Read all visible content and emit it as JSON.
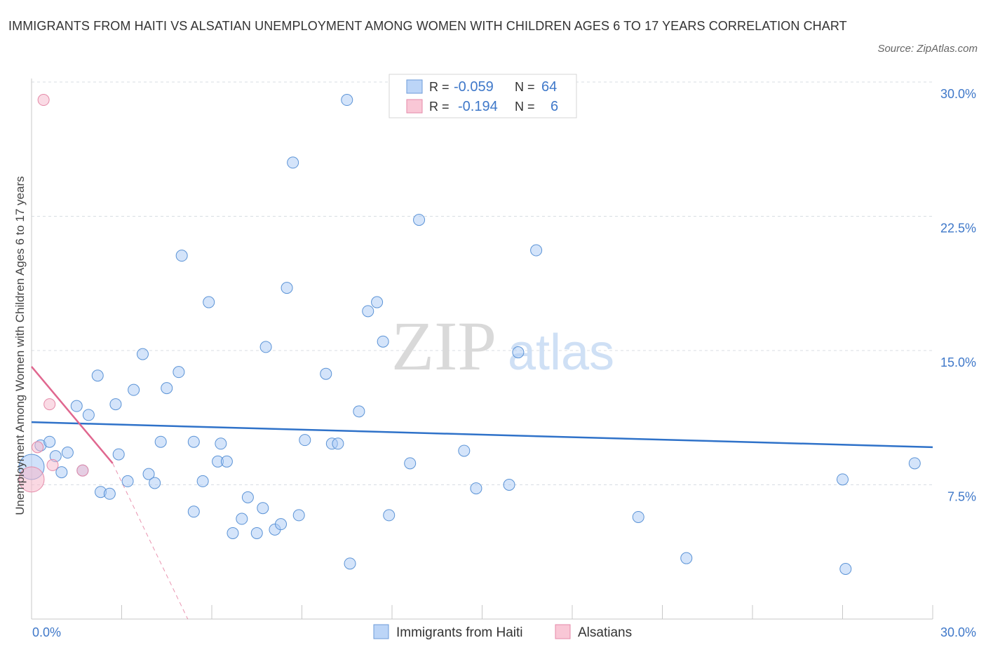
{
  "header": {
    "title": "IMMIGRANTS FROM HAITI VS ALSATIAN UNEMPLOYMENT AMONG WOMEN WITH CHILDREN AGES 6 TO 17 YEARS CORRELATION CHART",
    "source": "Source: ZipAtlas.com"
  },
  "watermark": {
    "zip": "ZIP",
    "atlas": "atlas"
  },
  "colors": {
    "blue_fill": "#a9c9f5",
    "blue_stroke": "#5b93d6",
    "blue_line": "#2f72c9",
    "pink_fill": "#f5b8cb",
    "pink_stroke": "#e58aa8",
    "pink_line": "#e0678f",
    "axis_text": "#3f78c9",
    "grid": "#d8dde3"
  },
  "legend_top": {
    "rows": [
      {
        "r_label": "R =",
        "r_value": "-0.059",
        "n_label": "N =",
        "n_value": "64"
      },
      {
        "r_label": "R =",
        "r_value": "-0.194",
        "n_label": "N =",
        "n_value": "6"
      }
    ]
  },
  "chart_data": {
    "type": "scatter",
    "title": "IMMIGRANTS FROM HAITI VS ALSATIAN UNEMPLOYMENT AMONG WOMEN WITH CHILDREN AGES 6 TO 17 YEARS CORRELATION CHART",
    "xlabel": "",
    "ylabel": "Unemployment Among Women with Children Ages 6 to 17 years",
    "xlim": [
      0,
      30
    ],
    "ylim": [
      0,
      30
    ],
    "x_tick_labels": [
      {
        "value": 0,
        "label": "0.0%"
      },
      {
        "value": 30,
        "label": "30.0%"
      }
    ],
    "y_tick_labels": [
      {
        "value": 7.5,
        "label": "7.5%"
      },
      {
        "value": 15,
        "label": "15.0%"
      },
      {
        "value": 22.5,
        "label": "22.5%"
      },
      {
        "value": 30,
        "label": "30.0%"
      }
    ],
    "legend_position": "bottom-center",
    "series": [
      {
        "name": "Immigrants from Haiti",
        "color": "#a9c9f5",
        "trend": {
          "x": [
            0,
            30
          ],
          "y": [
            11.0,
            9.6
          ],
          "dashed_extension": false
        },
        "points": [
          {
            "x": 0.0,
            "y": 8.5,
            "big": true
          },
          {
            "x": 0.3,
            "y": 9.7
          },
          {
            "x": 0.6,
            "y": 9.9
          },
          {
            "x": 0.8,
            "y": 9.1
          },
          {
            "x": 1.0,
            "y": 8.2
          },
          {
            "x": 1.2,
            "y": 9.3
          },
          {
            "x": 1.5,
            "y": 11.9
          },
          {
            "x": 1.7,
            "y": 8.3
          },
          {
            "x": 1.9,
            "y": 11.4
          },
          {
            "x": 2.2,
            "y": 13.6
          },
          {
            "x": 2.3,
            "y": 7.1
          },
          {
            "x": 2.6,
            "y": 7.0
          },
          {
            "x": 2.8,
            "y": 12.0
          },
          {
            "x": 2.9,
            "y": 9.2
          },
          {
            "x": 3.2,
            "y": 7.7
          },
          {
            "x": 3.4,
            "y": 12.8
          },
          {
            "x": 3.7,
            "y": 14.8
          },
          {
            "x": 3.9,
            "y": 8.1
          },
          {
            "x": 4.1,
            "y": 7.6
          },
          {
            "x": 4.3,
            "y": 9.9
          },
          {
            "x": 4.5,
            "y": 12.9
          },
          {
            "x": 4.9,
            "y": 13.8
          },
          {
            "x": 5.0,
            "y": 20.3
          },
          {
            "x": 5.4,
            "y": 9.9
          },
          {
            "x": 5.4,
            "y": 6.0
          },
          {
            "x": 5.7,
            "y": 7.7
          },
          {
            "x": 5.9,
            "y": 17.7
          },
          {
            "x": 6.2,
            "y": 8.8
          },
          {
            "x": 6.3,
            "y": 9.8
          },
          {
            "x": 6.5,
            "y": 8.8
          },
          {
            "x": 6.7,
            "y": 4.8
          },
          {
            "x": 7.0,
            "y": 5.6
          },
          {
            "x": 7.2,
            "y": 6.8
          },
          {
            "x": 7.5,
            "y": 4.8
          },
          {
            "x": 7.7,
            "y": 6.2
          },
          {
            "x": 7.8,
            "y": 15.2
          },
          {
            "x": 8.1,
            "y": 5.0
          },
          {
            "x": 8.3,
            "y": 5.3
          },
          {
            "x": 8.5,
            "y": 18.5
          },
          {
            "x": 8.7,
            "y": 25.5
          },
          {
            "x": 8.9,
            "y": 5.8
          },
          {
            "x": 9.1,
            "y": 10.0
          },
          {
            "x": 9.8,
            "y": 13.7
          },
          {
            "x": 10.0,
            "y": 9.8
          },
          {
            "x": 10.2,
            "y": 9.8
          },
          {
            "x": 10.5,
            "y": 29.0
          },
          {
            "x": 10.6,
            "y": 3.1
          },
          {
            "x": 10.9,
            "y": 11.6
          },
          {
            "x": 11.2,
            "y": 17.2
          },
          {
            "x": 11.5,
            "y": 17.7
          },
          {
            "x": 11.7,
            "y": 15.5
          },
          {
            "x": 11.9,
            "y": 5.8
          },
          {
            "x": 12.6,
            "y": 8.7
          },
          {
            "x": 12.9,
            "y": 22.3
          },
          {
            "x": 14.4,
            "y": 9.4
          },
          {
            "x": 14.8,
            "y": 7.3
          },
          {
            "x": 15.9,
            "y": 7.5
          },
          {
            "x": 16.2,
            "y": 14.9
          },
          {
            "x": 16.8,
            "y": 20.6
          },
          {
            "x": 20.2,
            "y": 5.7
          },
          {
            "x": 21.8,
            "y": 3.4
          },
          {
            "x": 27.0,
            "y": 7.8
          },
          {
            "x": 27.1,
            "y": 2.8
          },
          {
            "x": 29.4,
            "y": 8.7
          }
        ]
      },
      {
        "name": "Alsatians",
        "color": "#f5b8cb",
        "trend": {
          "x": [
            0,
            2.7
          ],
          "y": [
            14.1,
            8.7
          ],
          "dashed_to": {
            "x": 5.2,
            "y": 0
          }
        },
        "points": [
          {
            "x": 0.0,
            "y": 7.8,
            "big": true
          },
          {
            "x": 0.2,
            "y": 9.6
          },
          {
            "x": 0.4,
            "y": 29.0
          },
          {
            "x": 0.6,
            "y": 12.0
          },
          {
            "x": 0.7,
            "y": 8.6
          },
          {
            "x": 1.7,
            "y": 8.3
          }
        ]
      }
    ]
  }
}
